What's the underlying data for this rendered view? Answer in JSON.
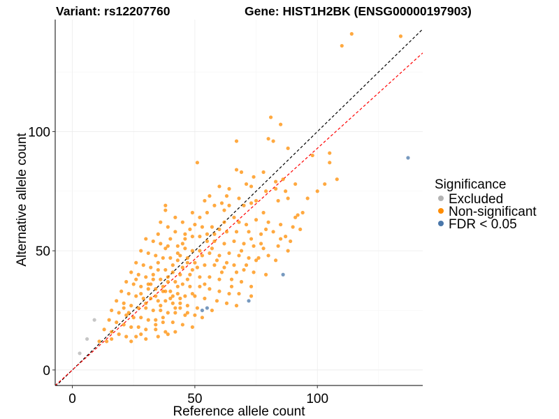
{
  "chart_data": {
    "type": "scatter",
    "title_left": "Variant: rs12207760",
    "title_right": "Gene: HIST1H2BK (ENSG00000197903)",
    "xlabel": "Reference allele count",
    "ylabel": "Alternative allele count",
    "xlim": [
      -7,
      143
    ],
    "ylim": [
      -6.5,
      147
    ],
    "x_ticks": [
      0,
      50,
      100
    ],
    "y_ticks": [
      0,
      50,
      100
    ],
    "grid": true,
    "reference_lines": [
      {
        "name": "identity",
        "intercept": 0,
        "slope": 1,
        "color": "#000000",
        "style": "dashed"
      },
      {
        "name": "fitted",
        "intercept": 0,
        "slope": 0.93,
        "color": "#ff0000",
        "style": "dashed"
      }
    ],
    "legend": {
      "title": "Significance",
      "placement": "right",
      "entries": [
        {
          "label": "Excluded",
          "color": "#b3b3b3"
        },
        {
          "label": "Non-significant",
          "color": "#ff8c00"
        },
        {
          "label": "FDR < 0.05",
          "color": "#4a77aa"
        }
      ]
    },
    "series": [
      {
        "name": "Excluded",
        "color": "#b3b3b3",
        "points": [
          [
            3,
            7
          ],
          [
            6,
            13
          ],
          [
            9,
            21
          ]
        ]
      },
      {
        "name": "FDR < 0.05",
        "color": "#4a77aa",
        "points": [
          [
            137,
            89
          ],
          [
            86,
            40
          ],
          [
            72,
            29
          ],
          [
            55,
            26
          ],
          [
            53,
            25
          ]
        ]
      },
      {
        "name": "Non-significant",
        "color": "#ff8c00",
        "points": [
          [
            114,
            141
          ],
          [
            110,
            136
          ],
          [
            134,
            140
          ],
          [
            81,
            106
          ],
          [
            85,
            103
          ],
          [
            80,
            97
          ],
          [
            67,
            96
          ],
          [
            82,
            96
          ],
          [
            88,
            93
          ],
          [
            98,
            90
          ],
          [
            105,
            91
          ],
          [
            105,
            87
          ],
          [
            51,
            87
          ],
          [
            67,
            84
          ],
          [
            69,
            83
          ],
          [
            78,
            83
          ],
          [
            74,
            81
          ],
          [
            86,
            80
          ],
          [
            83,
            79
          ],
          [
            71,
            78
          ],
          [
            73,
            77
          ],
          [
            60,
            77
          ],
          [
            64,
            76
          ],
          [
            79,
            75
          ],
          [
            83,
            76
          ],
          [
            87,
            75
          ],
          [
            91,
            78
          ],
          [
            56,
            73
          ],
          [
            63,
            73
          ],
          [
            68,
            72
          ],
          [
            75,
            71
          ],
          [
            73,
            70
          ],
          [
            84,
            71
          ],
          [
            88,
            72
          ],
          [
            61,
            70
          ],
          [
            54,
            71
          ],
          [
            58,
            69
          ],
          [
            64,
            69
          ],
          [
            70,
            69
          ],
          [
            78,
            66
          ],
          [
            92,
            65
          ],
          [
            38,
            69
          ],
          [
            38,
            67
          ],
          [
            49,
            66
          ],
          [
            55,
            66
          ],
          [
            62,
            67
          ],
          [
            66,
            64
          ],
          [
            68,
            62
          ],
          [
            71,
            61
          ],
          [
            75,
            63
          ],
          [
            80,
            62
          ],
          [
            85,
            61
          ],
          [
            90,
            60
          ],
          [
            42,
            64
          ],
          [
            45,
            62
          ],
          [
            50,
            61
          ],
          [
            53,
            60
          ],
          [
            57,
            60
          ],
          [
            60,
            59
          ],
          [
            63,
            58
          ],
          [
            67,
            58
          ],
          [
            72,
            58
          ],
          [
            77,
            57
          ],
          [
            82,
            58
          ],
          [
            87,
            56
          ],
          [
            93,
            59
          ],
          [
            36,
            62
          ],
          [
            39,
            60
          ],
          [
            42,
            58
          ],
          [
            46,
            57
          ],
          [
            49,
            56
          ],
          [
            52,
            56
          ],
          [
            55,
            54
          ],
          [
            58,
            54
          ],
          [
            62,
            53
          ],
          [
            66,
            54
          ],
          [
            70,
            53
          ],
          [
            74,
            52
          ],
          [
            78,
            51
          ],
          [
            84,
            52
          ],
          [
            89,
            54
          ],
          [
            30,
            55
          ],
          [
            33,
            54
          ],
          [
            36,
            53
          ],
          [
            39,
            52
          ],
          [
            43,
            52
          ],
          [
            46,
            51
          ],
          [
            49,
            50
          ],
          [
            52,
            50
          ],
          [
            56,
            49
          ],
          [
            60,
            48
          ],
          [
            64,
            49
          ],
          [
            68,
            48
          ],
          [
            72,
            47
          ],
          [
            76,
            47
          ],
          [
            80,
            48
          ],
          [
            28,
            50
          ],
          [
            31,
            49
          ],
          [
            34,
            48
          ],
          [
            37,
            47
          ],
          [
            40,
            47
          ],
          [
            43,
            46
          ],
          [
            47,
            45
          ],
          [
            50,
            45
          ],
          [
            54,
            44
          ],
          [
            58,
            44
          ],
          [
            62,
            43
          ],
          [
            66,
            44
          ],
          [
            70,
            42
          ],
          [
            74,
            41
          ],
          [
            79,
            40
          ],
          [
            26,
            45
          ],
          [
            29,
            44
          ],
          [
            32,
            43
          ],
          [
            35,
            42
          ],
          [
            38,
            42
          ],
          [
            41,
            41
          ],
          [
            44,
            40
          ],
          [
            48,
            40
          ],
          [
            52,
            39
          ],
          [
            56,
            39
          ],
          [
            60,
            38
          ],
          [
            65,
            38
          ],
          [
            69,
            37
          ],
          [
            73,
            35
          ],
          [
            24,
            41
          ],
          [
            27,
            40
          ],
          [
            30,
            39
          ],
          [
            33,
            38
          ],
          [
            36,
            38
          ],
          [
            39,
            37
          ],
          [
            42,
            37
          ],
          [
            45,
            36
          ],
          [
            48,
            35
          ],
          [
            52,
            35
          ],
          [
            56,
            34
          ],
          [
            60,
            33
          ],
          [
            64,
            32
          ],
          [
            68,
            32
          ],
          [
            73,
            31
          ],
          [
            22,
            37
          ],
          [
            25,
            36
          ],
          [
            28,
            35
          ],
          [
            31,
            34
          ],
          [
            34,
            34
          ],
          [
            37,
            33
          ],
          [
            40,
            33
          ],
          [
            43,
            32
          ],
          [
            46,
            31
          ],
          [
            50,
            31
          ],
          [
            54,
            30
          ],
          [
            59,
            29
          ],
          [
            63,
            28
          ],
          [
            67,
            27
          ],
          [
            20,
            33
          ],
          [
            23,
            32
          ],
          [
            26,
            31
          ],
          [
            29,
            30
          ],
          [
            32,
            30
          ],
          [
            35,
            29
          ],
          [
            38,
            29
          ],
          [
            41,
            28
          ],
          [
            44,
            28
          ],
          [
            47,
            27
          ],
          [
            51,
            26
          ],
          [
            57,
            25
          ],
          [
            18,
            29
          ],
          [
            21,
            28
          ],
          [
            24,
            27
          ],
          [
            27,
            26
          ],
          [
            30,
            26
          ],
          [
            33,
            25
          ],
          [
            36,
            25
          ],
          [
            39,
            24
          ],
          [
            42,
            24
          ],
          [
            46,
            23
          ],
          [
            50,
            23
          ],
          [
            53,
            22
          ],
          [
            16,
            25
          ],
          [
            19,
            24
          ],
          [
            22,
            23
          ],
          [
            25,
            22
          ],
          [
            28,
            22
          ],
          [
            31,
            21
          ],
          [
            34,
            21
          ],
          [
            37,
            20
          ],
          [
            41,
            20
          ],
          [
            45,
            19
          ],
          [
            49,
            18
          ],
          [
            15,
            21
          ],
          [
            18,
            20
          ],
          [
            21,
            19
          ],
          [
            24,
            18
          ],
          [
            27,
            18
          ],
          [
            30,
            17
          ],
          [
            34,
            17
          ],
          [
            38,
            16
          ],
          [
            42,
            16
          ],
          [
            13,
            17
          ],
          [
            16,
            16
          ],
          [
            19,
            15
          ],
          [
            22,
            14
          ],
          [
            26,
            14
          ],
          [
            30,
            13
          ],
          [
            35,
            14
          ],
          [
            39,
            15
          ],
          [
            11,
            12
          ],
          [
            14,
            12
          ],
          [
            16,
            13
          ],
          [
            24,
            12
          ],
          [
            28,
            15
          ],
          [
            34,
            19
          ],
          [
            37,
            22
          ],
          [
            44,
            26
          ],
          [
            47,
            24
          ],
          [
            49,
            32
          ],
          [
            38,
            51
          ],
          [
            41,
            44
          ],
          [
            43,
            49
          ],
          [
            45,
            53
          ],
          [
            47,
            47
          ],
          [
            51,
            43
          ],
          [
            53,
            48
          ],
          [
            55,
            57
          ],
          [
            57,
            51
          ],
          [
            59,
            46
          ],
          [
            31,
            36
          ],
          [
            33,
            40
          ],
          [
            35,
            45
          ],
          [
            37,
            35
          ],
          [
            39,
            39
          ],
          [
            41,
            31
          ],
          [
            43,
            35
          ],
          [
            45,
            43
          ],
          [
            47,
            38
          ],
          [
            49,
            42
          ],
          [
            26,
            38
          ],
          [
            28,
            32
          ],
          [
            30,
            28
          ],
          [
            32,
            36
          ],
          [
            34,
            31
          ],
          [
            36,
            27
          ],
          [
            38,
            33
          ],
          [
            40,
            30
          ],
          [
            42,
            26
          ],
          [
            44,
            30
          ],
          [
            61,
            41
          ],
          [
            63,
            45
          ],
          [
            65,
            35
          ],
          [
            67,
            41
          ],
          [
            69,
            50
          ],
          [
            71,
            44
          ],
          [
            73,
            55
          ],
          [
            75,
            46
          ],
          [
            77,
            53
          ],
          [
            79,
            59
          ],
          [
            83,
            46
          ],
          [
            85,
            55
          ],
          [
            88,
            50
          ],
          [
            91,
            64
          ],
          [
            94,
            66
          ],
          [
            96,
            72
          ],
          [
            100,
            75
          ],
          [
            103,
            78
          ],
          [
            108,
            80
          ],
          [
            54,
            36
          ],
          [
            58,
            57
          ],
          [
            62,
            62
          ],
          [
            46,
            55
          ],
          [
            48,
            59
          ],
          [
            52,
            64
          ],
          [
            35,
            57
          ],
          [
            40,
            55
          ],
          [
            44,
            48
          ],
          [
            23,
            24
          ],
          [
            21,
            26
          ]
        ]
      }
    ]
  }
}
